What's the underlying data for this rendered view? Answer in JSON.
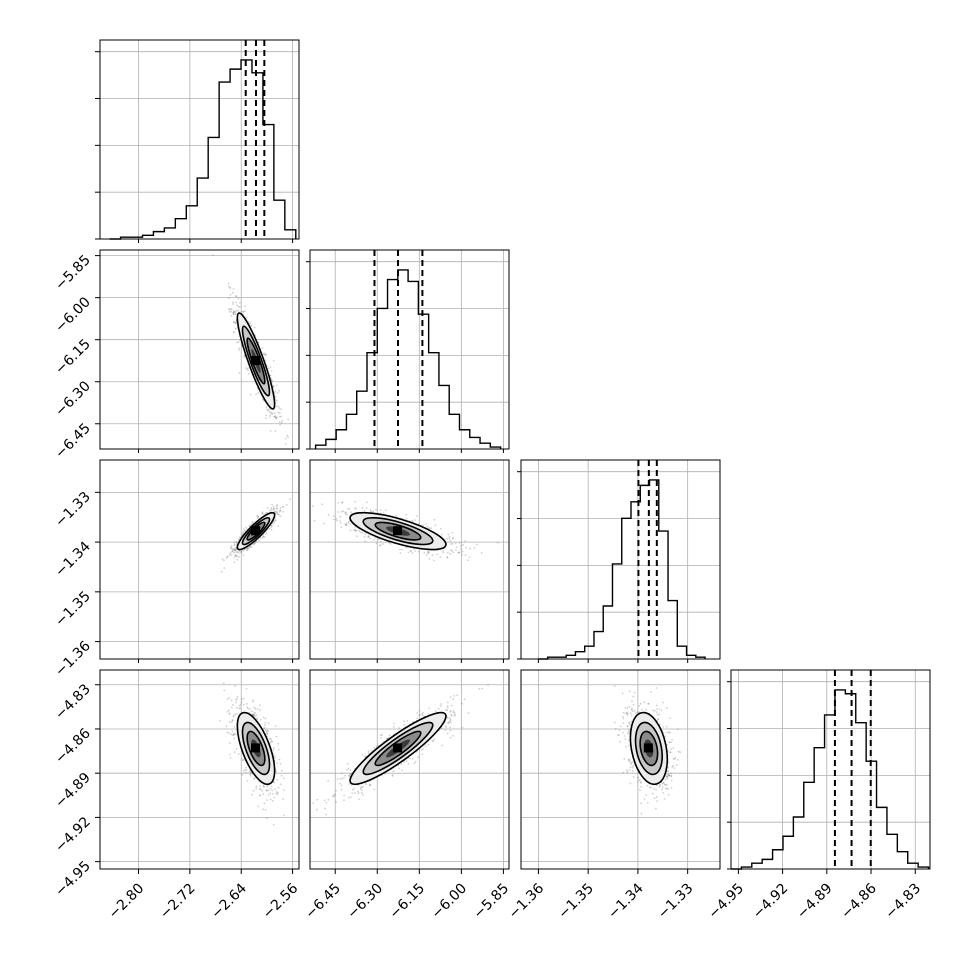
{
  "figure": {
    "type": "corner"
  },
  "chart_data": {
    "type": "corner",
    "grid": true,
    "parameters": [
      {
        "ticks": [
          -2.8,
          -2.72,
          -2.64,
          -2.56
        ],
        "tick_labels": [
          "−2.80",
          "−2.72",
          "−2.64",
          "−2.56"
        ],
        "range": [
          -2.86,
          -2.55
        ],
        "quantiles": [
          -2.633,
          -2.617,
          -2.604
        ]
      },
      {
        "ticks": [
          -6.45,
          -6.3,
          -6.15,
          -6.0,
          -5.85
        ],
        "tick_labels": [
          "−6.45",
          "−6.30",
          "−6.15",
          "−6.00",
          "−5.85"
        ],
        "range": [
          -6.54,
          -5.83
        ],
        "quantiles": [
          -6.31,
          -6.226,
          -6.139
        ]
      },
      {
        "ticks": [
          -1.36,
          -1.35,
          -1.34,
          -1.33
        ],
        "tick_labels": [
          "−1.36",
          "−1.35",
          "−1.34",
          "−1.33"
        ],
        "range": [
          -1.3635,
          -1.3235
        ],
        "quantiles": [
          -1.3399,
          -1.3378,
          -1.3362
        ]
      },
      {
        "ticks": [
          -4.95,
          -4.92,
          -4.89,
          -4.86,
          -4.83
        ],
        "tick_labels": [
          "−4.95",
          "−4.92",
          "−4.89",
          "−4.86",
          "−4.83"
        ],
        "range": [
          -4.955,
          -4.82
        ],
        "quantiles": [
          -4.8845,
          -4.8732,
          -4.8602
        ]
      }
    ],
    "histograms": [
      {
        "param": 0,
        "counts": [
          0,
          1,
          1,
          2,
          4,
          6,
          11,
          18,
          33,
          55,
          85,
          92,
          97,
          90,
          62,
          21,
          5
        ],
        "bin_range": [
          -2.845,
          -2.555
        ]
      },
      {
        "param": 1,
        "counts": [
          2,
          5,
          10,
          18,
          30,
          50,
          73,
          88,
          93,
          87,
          70,
          50,
          33,
          18,
          10,
          6,
          3,
          1
        ],
        "bin_range": [
          -6.52,
          -5.86
        ]
      },
      {
        "param": 2,
        "counts": [
          0,
          1,
          1,
          2,
          4,
          7,
          15,
          29,
          52,
          77,
          86,
          95,
          98,
          70,
          32,
          7,
          2,
          1
        ],
        "bin_range": [
          -1.36,
          -1.3265
        ]
      },
      {
        "param": 3,
        "counts": [
          0,
          1,
          3,
          5,
          10,
          17,
          27,
          45,
          63,
          80,
          93,
          91,
          76,
          56,
          32,
          18,
          9,
          3,
          1
        ],
        "bin_range": [
          -4.955,
          -4.821
        ]
      }
    ],
    "pairs": [
      {
        "x": 0,
        "y": 1,
        "correlation": -0.9
      },
      {
        "x": 0,
        "y": 2,
        "correlation": 0.88
      },
      {
        "x": 1,
        "y": 2,
        "correlation": -0.72
      },
      {
        "x": 0,
        "y": 3,
        "correlation": -0.62
      },
      {
        "x": 1,
        "y": 3,
        "correlation": 0.9
      },
      {
        "x": 2,
        "y": 3,
        "correlation": -0.3
      }
    ]
  }
}
